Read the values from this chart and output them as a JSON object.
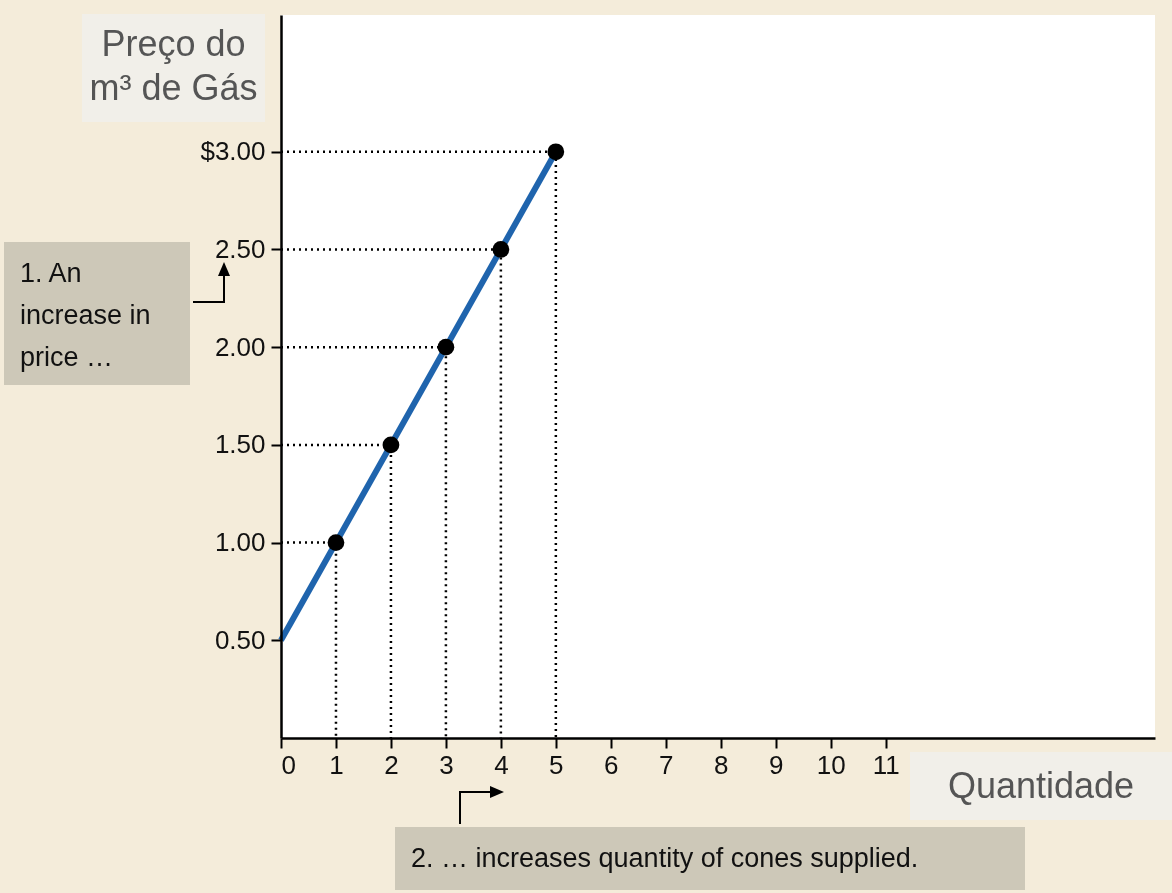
{
  "chart_data": {
    "type": "line",
    "xlabel": "Quantidade",
    "ylabel": "Preço do m³ de Gás",
    "xlim": [
      0,
      15.9
    ],
    "xticks": [
      0,
      1,
      2,
      3,
      4,
      5,
      6,
      7,
      8,
      9,
      10,
      11
    ],
    "ylim": [
      0,
      3.7
    ],
    "yticks": [
      {
        "value": 0.5,
        "label": "0.50"
      },
      {
        "value": 1,
        "label": "1.00"
      },
      {
        "value": 1.5,
        "label": "1.50"
      },
      {
        "value": 2,
        "label": "2.00"
      },
      {
        "value": 2.5,
        "label": "2.50"
      },
      {
        "value": 3,
        "label": "$3.00"
      }
    ],
    "grid": false,
    "series": [
      {
        "color": "#1f64ad",
        "x": [
          0,
          5
        ],
        "values": [
          0.5,
          3
        ]
      },
      {
        "type": "line",
        "color": "#000000",
        "line_style": "dotted",
        "x": [
          0,
          1,
          1
        ],
        "values": [
          1,
          1,
          0
        ]
      },
      {
        "type": "line",
        "color": "#000000",
        "line_style": "dotted",
        "x": [
          0,
          2,
          2
        ],
        "values": [
          1.5,
          1.5,
          0
        ]
      },
      {
        "type": "line",
        "color": "#000000",
        "line_style": "dotted",
        "x": [
          0,
          3,
          3
        ],
        "values": [
          2,
          2,
          0
        ]
      },
      {
        "type": "line",
        "color": "#000000",
        "line_style": "dotted",
        "x": [
          0,
          4,
          4
        ],
        "values": [
          2.5,
          2.5,
          0
        ]
      },
      {
        "type": "line",
        "color": "#000000",
        "line_style": "dotted",
        "x": [
          0,
          5,
          5
        ],
        "values": [
          3,
          3,
          0
        ]
      },
      {
        "type": "scatter",
        "color": "#000000",
        "marker": "circle",
        "x": [
          1,
          2,
          3,
          4,
          5
        ],
        "values": [
          1,
          1.5,
          2,
          2.5,
          3
        ]
      }
    ],
    "annotations": [
      "1. An increase in price …",
      "2. … increases quantity of cones supplied."
    ]
  }
}
